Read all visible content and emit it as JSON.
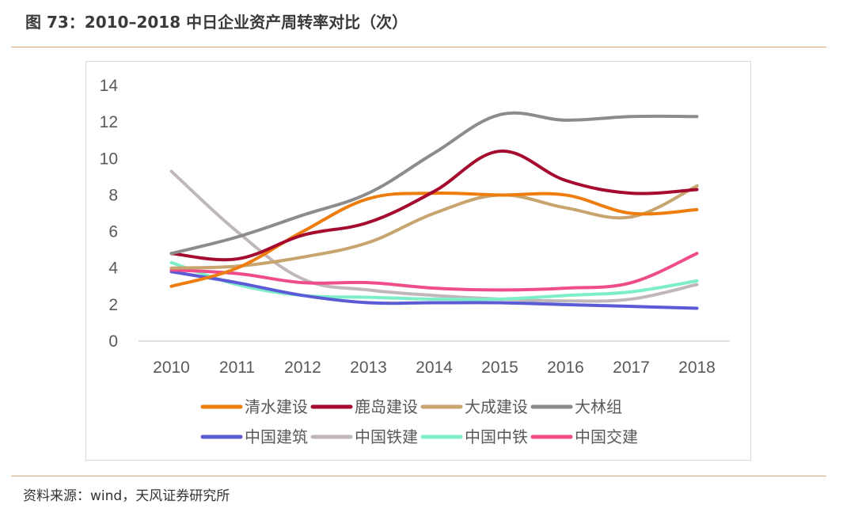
{
  "header": {
    "title": "图 73：2010–2018 中日企业资产周转率对比（次）"
  },
  "footer": {
    "source": "资料来源：wind，天风证券研究所"
  },
  "chart_data": {
    "type": "line",
    "title": "",
    "xlabel": "",
    "ylabel": "",
    "categories": [
      "2010",
      "2011",
      "2012",
      "2013",
      "2014",
      "2015",
      "2016",
      "2017",
      "2018"
    ],
    "y_ticks": [
      "0",
      "2",
      "4",
      "6",
      "8",
      "10",
      "12",
      "14"
    ],
    "ylim": [
      0,
      14
    ],
    "grid": false,
    "legend_position": "bottom",
    "series": [
      {
        "name": "清水建设",
        "color": "#ED7D0E",
        "values": [
          3.0,
          4.0,
          6.0,
          7.8,
          8.1,
          8.0,
          8.0,
          7.0,
          7.2
        ]
      },
      {
        "name": "鹿岛建设",
        "color": "#A50B2E",
        "values": [
          4.8,
          4.5,
          5.8,
          6.5,
          8.2,
          10.4,
          8.8,
          8.1,
          8.3
        ]
      },
      {
        "name": "大成建设",
        "color": "#C8A46E",
        "values": [
          4.0,
          4.1,
          4.6,
          5.4,
          7.0,
          8.0,
          7.3,
          6.8,
          8.5
        ]
      },
      {
        "name": "大林组",
        "color": "#8C8C8C",
        "values": [
          4.8,
          5.7,
          6.9,
          8.1,
          10.3,
          12.4,
          12.1,
          12.3,
          12.3
        ]
      },
      {
        "name": "中国建筑",
        "color": "#5B5BD6",
        "values": [
          3.8,
          3.2,
          2.5,
          2.1,
          2.1,
          2.1,
          2.0,
          1.9,
          1.8
        ]
      },
      {
        "name": "中国铁建",
        "color": "#C0B8B8",
        "values": [
          9.3,
          6.0,
          3.4,
          2.8,
          2.5,
          2.3,
          2.2,
          2.3,
          3.1
        ]
      },
      {
        "name": "中国中铁",
        "color": "#7DEFC8",
        "values": [
          4.3,
          3.1,
          2.5,
          2.4,
          2.3,
          2.3,
          2.5,
          2.7,
          3.3
        ]
      },
      {
        "name": "中国交建",
        "color": "#EE4D8A",
        "values": [
          3.9,
          3.7,
          3.2,
          3.2,
          2.9,
          2.8,
          2.9,
          3.2,
          4.8
        ]
      }
    ]
  }
}
